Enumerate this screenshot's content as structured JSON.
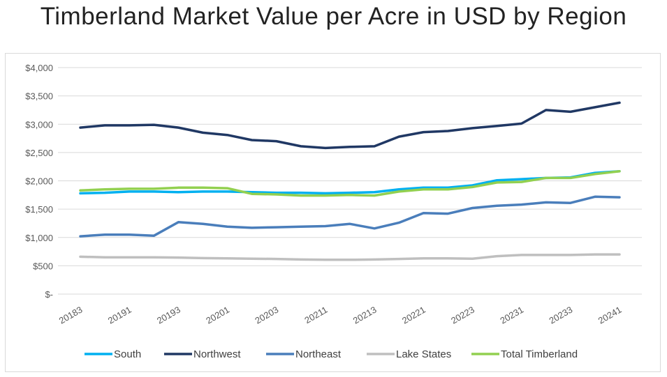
{
  "chart_data": {
    "type": "line",
    "title": "Timberland Market Value per Acre in USD by Region",
    "xlabel": "",
    "ylabel": "",
    "ylim": [
      0,
      4000
    ],
    "y_ticks": [
      0,
      500,
      1000,
      1500,
      2000,
      2500,
      3000,
      3500,
      4000
    ],
    "y_tick_labels": [
      "$-",
      "$500",
      "$1,000",
      "$1,500",
      "$2,000",
      "$2,500",
      "$3,000",
      "$3,500",
      "$4,000"
    ],
    "x": [
      "20183",
      "20184",
      "20191",
      "20192",
      "20193",
      "20194",
      "20201",
      "20202",
      "20203",
      "20204",
      "20211",
      "20212",
      "20213",
      "20214",
      "20221",
      "20222",
      "20223",
      "20224",
      "20231",
      "20232",
      "20233",
      "20234",
      "20241"
    ],
    "x_tick_labels": [
      "20183",
      "",
      "20191",
      "",
      "20193",
      "",
      "20201",
      "",
      "20203",
      "",
      "20211",
      "",
      "20213",
      "",
      "20221",
      "",
      "20223",
      "",
      "20231",
      "",
      "20233",
      "",
      "20241"
    ],
    "grid": true,
    "legend": "bottom",
    "series": [
      {
        "name": "South",
        "color": "#00b0f0",
        "values": [
          1780,
          1790,
          1810,
          1810,
          1800,
          1810,
          1810,
          1800,
          1790,
          1790,
          1780,
          1790,
          1800,
          1850,
          1880,
          1880,
          1920,
          2010,
          2030,
          2050,
          2060,
          2140,
          2170
        ]
      },
      {
        "name": "Northwest",
        "color": "#203864",
        "values": [
          2940,
          2980,
          2980,
          2990,
          2940,
          2850,
          2810,
          2720,
          2700,
          2610,
          2580,
          2600,
          2610,
          2780,
          2860,
          2880,
          2930,
          2970,
          3010,
          3250,
          3220,
          3300,
          3380
        ]
      },
      {
        "name": "Northeast",
        "color": "#4a7ebb",
        "values": [
          1020,
          1050,
          1050,
          1030,
          1270,
          1240,
          1190,
          1170,
          1180,
          1190,
          1200,
          1240,
          1160,
          1260,
          1430,
          1420,
          1520,
          1560,
          1580,
          1620,
          1610,
          1720,
          1710
        ]
      },
      {
        "name": "Lake States",
        "color": "#bfbfbf",
        "values": [
          660,
          650,
          650,
          650,
          645,
          635,
          630,
          625,
          620,
          610,
          605,
          605,
          610,
          620,
          630,
          630,
          625,
          670,
          690,
          690,
          690,
          700,
          700
        ]
      },
      {
        "name": "Total Timberland",
        "color": "#92d050",
        "values": [
          1830,
          1850,
          1860,
          1860,
          1880,
          1880,
          1870,
          1770,
          1760,
          1740,
          1740,
          1750,
          1740,
          1810,
          1850,
          1850,
          1890,
          1970,
          1980,
          2050,
          2050,
          2120,
          2170
        ]
      }
    ]
  }
}
